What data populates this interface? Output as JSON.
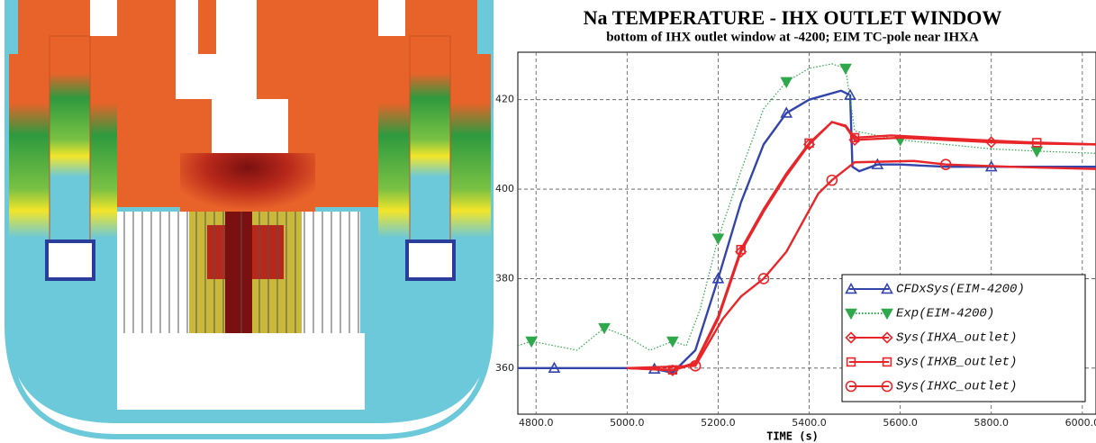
{
  "chart_data": {
    "type": "line",
    "title": "Na TEMPERATURE - IHX OUTLET WINDOW",
    "subtitle": "bottom of IHX outlet window at -4200; EIM TC-pole near IHXA",
    "x_label": "TIME (s)",
    "xlim": [
      4760,
      6030
    ],
    "ylim": [
      349.7,
      430.6
    ],
    "xticks": [
      {
        "value": 4800,
        "label": "4800.0"
      },
      {
        "value": 5000,
        "label": "5000.0"
      },
      {
        "value": 5200,
        "label": "5200.0"
      },
      {
        "value": 5400,
        "label": "5400.0"
      },
      {
        "value": 5600,
        "label": "5600.0"
      },
      {
        "value": 5800,
        "label": "5800.0"
      },
      {
        "value": 6000,
        "label": "6000.0"
      }
    ],
    "yticks": [
      360,
      380,
      400,
      420
    ],
    "grid": true,
    "legend": "lower right",
    "series": [
      {
        "name": "CFDxSys(EIM-4200)",
        "color": "#3344aa",
        "marker": "triangle",
        "style": "solid",
        "x": [
          4760,
          4840,
          4920,
          5000,
          5060,
          5100,
          5150,
          5200,
          5250,
          5300,
          5350,
          5400,
          5470,
          5490,
          5495,
          5510,
          5550,
          5600,
          5700,
          5800,
          5900,
          6030
        ],
        "values": [
          360,
          360,
          360,
          360,
          359.8,
          359,
          364,
          380,
          397,
          410,
          417,
          420,
          422,
          421,
          405,
          404,
          405.5,
          405.5,
          405,
          405,
          405,
          405
        ]
      },
      {
        "name": "Exp(EIM-4200)",
        "color": "#2ea84a",
        "marker": "down-triangle",
        "style": "dotted",
        "x": [
          4760,
          4790,
          4840,
          4890,
          4950,
          5000,
          5050,
          5100,
          5130,
          5160,
          5200,
          5250,
          5300,
          5350,
          5400,
          5450,
          5480,
          5500,
          5550,
          5600,
          5700,
          5800,
          5900,
          6030
        ],
        "values": [
          365,
          366,
          365,
          364,
          369,
          367,
          364,
          366,
          365,
          373,
          389,
          404,
          418,
          424,
          427,
          428,
          427,
          413,
          412,
          411,
          410,
          409,
          408.5,
          408
        ]
      },
      {
        "name": "Sys(IHXA_outlet)",
        "color": "#e8262a",
        "marker": "diamond",
        "style": "solid",
        "x": [
          5000,
          5100,
          5150,
          5200,
          5250,
          5300,
          5350,
          5400,
          5450,
          5480,
          5500,
          5600,
          5700,
          5800,
          5900,
          6030
        ],
        "values": [
          360,
          359.5,
          361,
          371,
          386,
          395,
          403,
          410,
          415,
          414,
          411,
          411.5,
          411,
          410.5,
          410.2,
          410
        ]
      },
      {
        "name": "Sys(IHXB_outlet)",
        "color": "#e8262a",
        "marker": "square",
        "style": "solid",
        "x": [
          5000,
          5100,
          5150,
          5200,
          5250,
          5300,
          5350,
          5400,
          5450,
          5480,
          5500,
          5580,
          5770,
          5900,
          6030
        ],
        "values": [
          360,
          359.6,
          361.2,
          371.5,
          386.5,
          395.5,
          403.5,
          410.3,
          415,
          414.2,
          411.5,
          412,
          411,
          410.4,
          410
        ]
      },
      {
        "name": "Sys(IHXC_outlet)",
        "color": "#e8262a",
        "marker": "circle",
        "style": "solid",
        "x": [
          5000,
          5150,
          5210,
          5250,
          5300,
          5350,
          5420,
          5450,
          5500,
          5630,
          5700,
          5840,
          6030
        ],
        "values": [
          360,
          360.5,
          371,
          376,
          380,
          386,
          399,
          402,
          406,
          406.3,
          405.5,
          405,
          404.5
        ]
      }
    ]
  }
}
